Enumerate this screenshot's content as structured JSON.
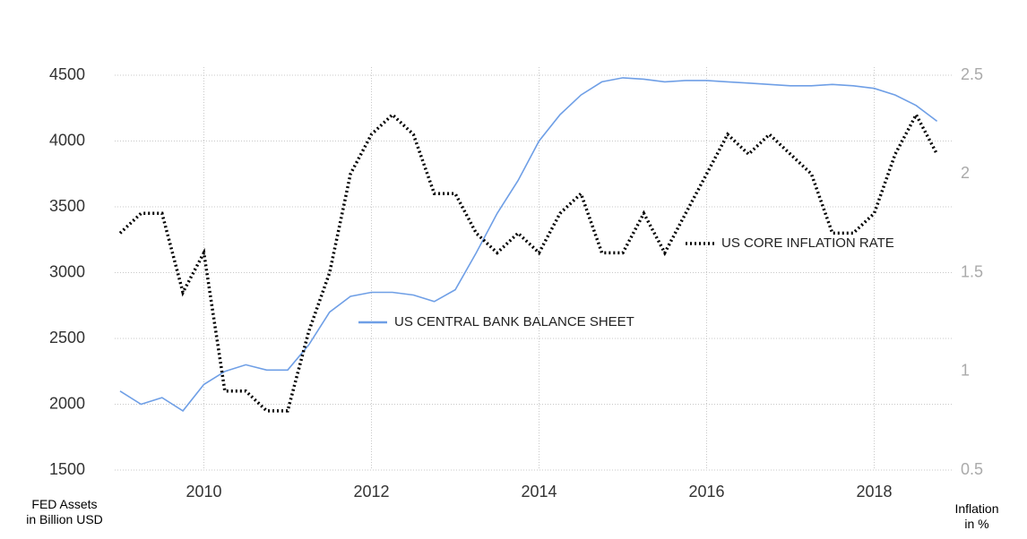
{
  "chart_data": {
    "type": "line",
    "x": [
      2009,
      2009.25,
      2009.5,
      2009.75,
      2010,
      2010.25,
      2010.5,
      2010.75,
      2011,
      2011.25,
      2011.5,
      2011.75,
      2012,
      2012.25,
      2012.5,
      2012.75,
      2013,
      2013.25,
      2013.5,
      2013.75,
      2014,
      2014.25,
      2014.5,
      2014.75,
      2015,
      2015.25,
      2015.5,
      2015.75,
      2016,
      2016.25,
      2016.5,
      2016.75,
      2017,
      2017.25,
      2017.5,
      2017.75,
      2018,
      2018.25,
      2018.5,
      2018.75
    ],
    "series": [
      {
        "name": "US CENTRAL BANK BALANCE SHEET",
        "color": "#6f9fe6",
        "axis": "y",
        "values": [
          2100,
          2000,
          2050,
          1950,
          2150,
          2250,
          2300,
          2260,
          2260,
          2450,
          2700,
          2820,
          2850,
          2850,
          2830,
          2780,
          2870,
          3150,
          3450,
          3700,
          4000,
          4200,
          4350,
          4450,
          4480,
          4470,
          4450,
          4460,
          4460,
          4450,
          4440,
          4430,
          4420,
          4420,
          4430,
          4420,
          4400,
          4350,
          4270,
          4150
        ]
      },
      {
        "name": "US CORE INFLATION RATE",
        "color": "#000000",
        "axis": "y2",
        "values": [
          1.7,
          1.8,
          1.8,
          1.4,
          1.6,
          0.9,
          0.9,
          0.8,
          0.8,
          1.2,
          1.5,
          2.0,
          2.2,
          2.3,
          2.2,
          1.9,
          1.9,
          1.7,
          1.6,
          1.7,
          1.6,
          1.8,
          1.9,
          1.6,
          1.6,
          1.8,
          1.6,
          1.8,
          2.0,
          2.2,
          2.1,
          2.2,
          2.1,
          2.0,
          1.7,
          1.7,
          1.8,
          2.1,
          2.3,
          2.1
        ]
      }
    ],
    "xlim": [
      2009,
      2019
    ],
    "xticks": [
      2010,
      2012,
      2014,
      2016,
      2018
    ],
    "ylim": [
      1500,
      4500
    ],
    "yticks": [
      1500,
      2000,
      2500,
      3000,
      3500,
      4000,
      4500
    ],
    "y2lim": [
      0.5,
      2.5
    ],
    "y2ticks": [
      0.5,
      1,
      1.5,
      2,
      2.5
    ],
    "y_label": "FED Assets\nin Billion USD",
    "y2_label": "Inflation\nin %",
    "grid": true
  }
}
